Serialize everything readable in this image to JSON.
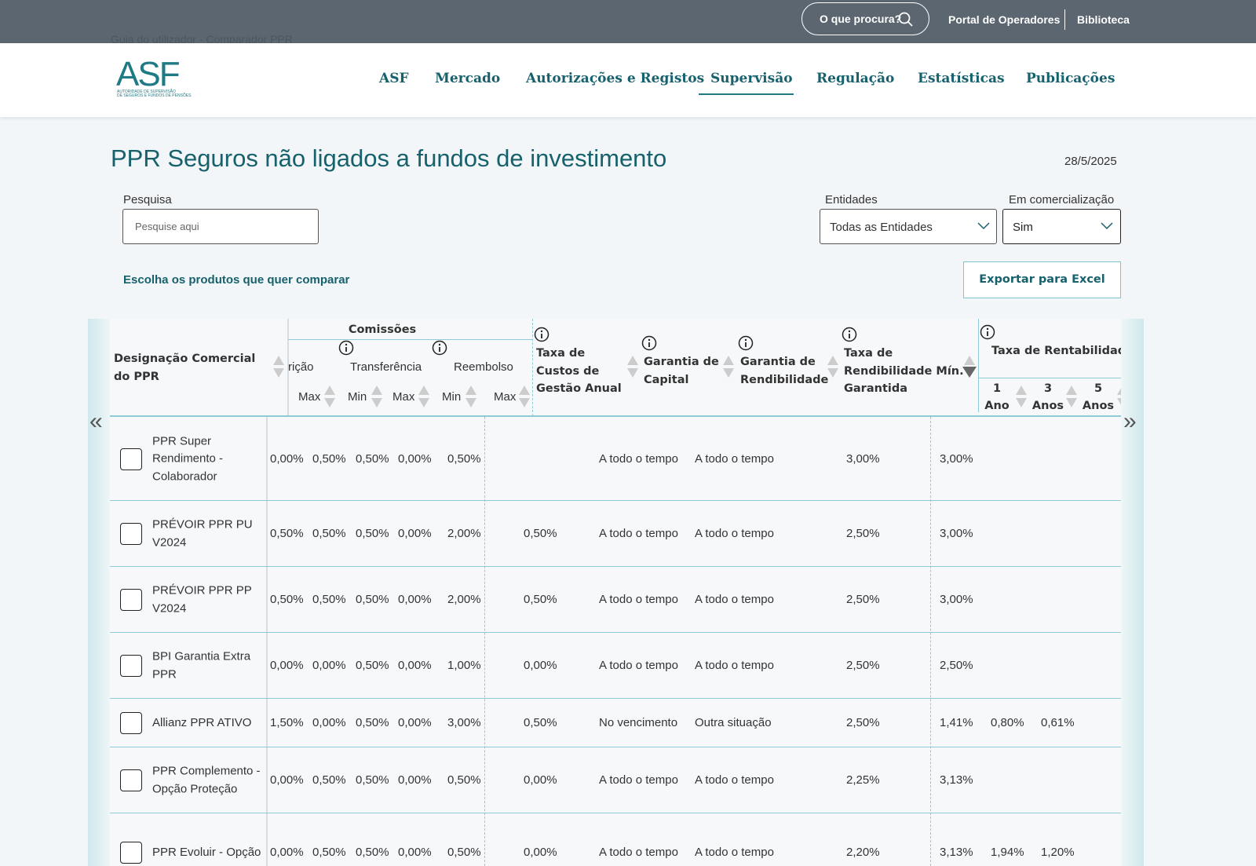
{
  "top_bar": {
    "background_text": "Guia do utilizador - Comparador PPR",
    "search": "O que procura?",
    "links": [
      "Portal de Operadores",
      "Biblioteca"
    ]
  },
  "header": {
    "logo": "ASF",
    "logo_subtitle": [
      "AUTORIDADE DE SUPERVISÃO",
      "DE SEGUROS E FUNDOS DE PENSÕES"
    ],
    "nav": [
      "ASF",
      "Mercado",
      "Autorizações e Registos",
      "Supervisão",
      "Regulação",
      "Estatísticas",
      "Publicações"
    ],
    "active_nav": 3
  },
  "page": {
    "title": "PPR Seguros não ligados a fundos de investimento",
    "date": "28/5/2025",
    "search_label": "Pesquisa",
    "search_placeholder": "Pesquise aqui",
    "entities_label": "Entidades",
    "entities_value": "Todas as Entidades",
    "marketing_label": "Em comercialização",
    "marketing_value": "Sim",
    "compare_link": "Escolha os produtos que quer comparar",
    "export_button": "Exportar para Excel"
  },
  "table": {
    "name_header": [
      "Designação Comercial",
      "do PPR"
    ],
    "group_header": "Comissões",
    "sub_headers": [
      "rição",
      "Transferência",
      "Reembolso"
    ],
    "minmax": [
      "Max",
      "Min",
      "Max",
      "Min",
      "Max"
    ],
    "columns": [
      [
        "Taxa de",
        "Custos de",
        "Gestão Anual"
      ],
      [
        "Garantia de",
        "Capital"
      ],
      [
        "Garantia de",
        "Rendibilidade"
      ],
      [
        "Taxa de",
        "Rendibilidade Mín.",
        "Garantida"
      ]
    ],
    "return_header": "Taxa de Rentabilidad",
    "return_periods": [
      "1 Ano",
      "3 Anos",
      "5 Anos"
    ],
    "rows": [
      {
        "name": "PPR Super Rendimento - Colaborador",
        "cells": [
          "0,00%",
          "0,50%",
          "0,50%",
          "0,00%",
          "0,50%",
          null,
          "A todo o tempo",
          "A todo o tempo",
          "3,00%",
          "3,00%",
          null,
          null
        ]
      },
      {
        "name": "PRÉVOIR PPR PU V2024",
        "cells": [
          "0,50%",
          "0,50%",
          "0,50%",
          "0,00%",
          "2,00%",
          "0,50%",
          "A todo o tempo",
          "A todo o tempo",
          "2,50%",
          "3,00%",
          null,
          null
        ]
      },
      {
        "name": "PRÉVOIR PPR PP V2024",
        "cells": [
          "0,50%",
          "0,50%",
          "0,50%",
          "0,00%",
          "2,00%",
          "0,50%",
          "A todo o tempo",
          "A todo o tempo",
          "2,50%",
          "3,00%",
          null,
          null
        ]
      },
      {
        "name": "BPI Garantia Extra PPR",
        "cells": [
          "0,00%",
          "0,00%",
          "0,50%",
          "0,00%",
          "1,00%",
          "0,00%",
          "A todo o tempo",
          "A todo o tempo",
          "2,50%",
          "2,50%",
          null,
          null
        ]
      },
      {
        "name": "Allianz PPR ATIVO",
        "cells": [
          "1,50%",
          "0,00%",
          "0,50%",
          "0,00%",
          "3,00%",
          "0,50%",
          "No vencimento",
          "Outra situação",
          "2,50%",
          "1,41%",
          "0,80%",
          "0,61%"
        ]
      },
      {
        "name": "PPR Complemento - Opção Proteção",
        "cells": [
          "0,00%",
          "0,50%",
          "0,50%",
          "0,00%",
          "0,50%",
          "0,00%",
          "A todo o tempo",
          "A todo o tempo",
          "2,25%",
          "3,13%",
          null,
          null
        ]
      },
      {
        "name": "PPR Evoluir - Opção",
        "cells": [
          "0,00%",
          "0,50%",
          "0,50%",
          "0,00%",
          "0,50%",
          "0,00%",
          "A todo o tempo",
          "A todo o tempo",
          "2,20%",
          "3,13%",
          "1,94%",
          "1,20%"
        ]
      }
    ]
  }
}
